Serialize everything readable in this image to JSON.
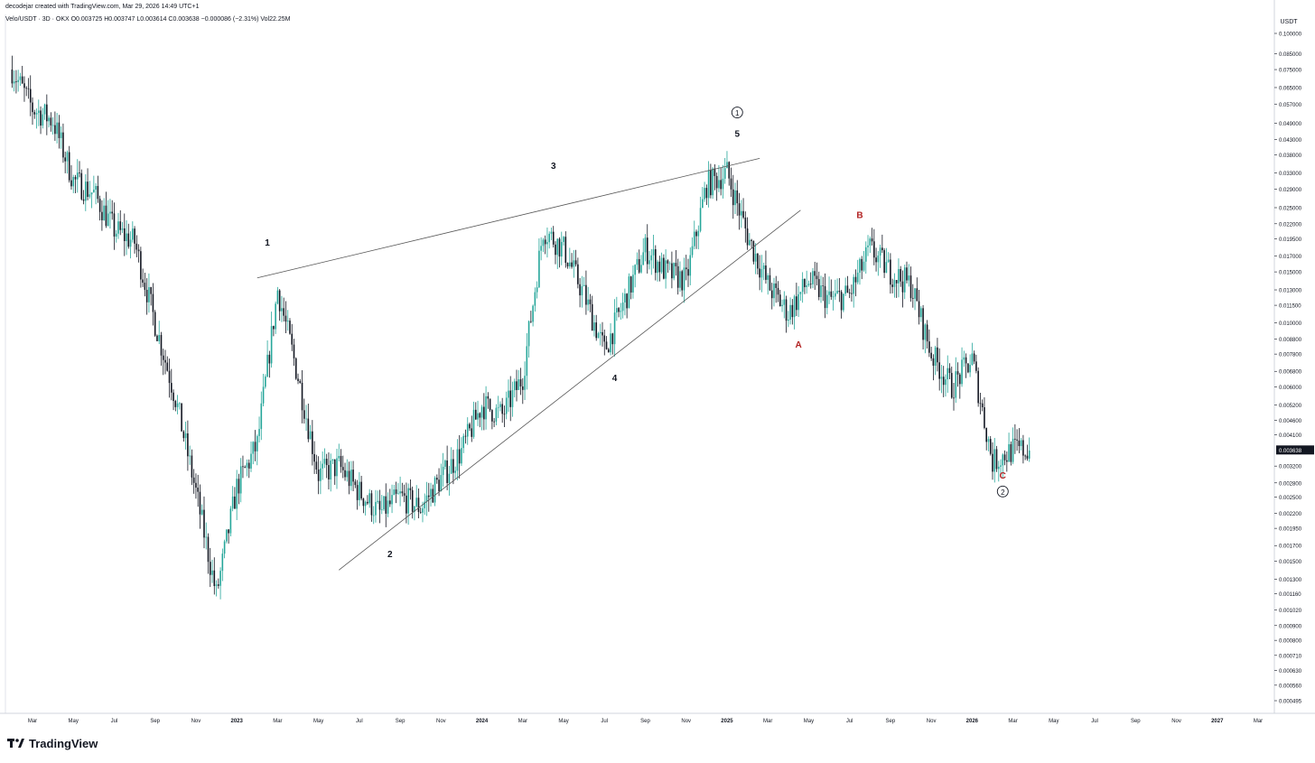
{
  "header": {
    "attribution": "decodejar created with TradingView.com, Mar 29, 2026 14:49 UTC+1",
    "symbol_line": "Velo/USDT · 3D · OKX  O0.003725  H0.003747  L0.003614  C0.003638  −0.000086 (−2.31%)  Vol22.25M"
  },
  "price_axis": {
    "currency": "USDT",
    "last_price_label": "0.003638"
  },
  "footer": {
    "brand": "TradingView"
  },
  "colors": {
    "up_candle": "#26a69a",
    "down_candle": "#131722",
    "wave_label_black": "#131722",
    "wave_label_red": "#b22222",
    "trendline": "#555555",
    "last_price_bg": "#131722"
  },
  "chart_data": {
    "type": "candlestick",
    "scale": "log",
    "ylim": [
      0.000495,
      0.1
    ],
    "y_ticks": [
      "0.100000",
      "0.085000",
      "0.075000",
      "0.065000",
      "0.057000",
      "0.049000",
      "0.043000",
      "0.038000",
      "0.033000",
      "0.029000",
      "0.025000",
      "0.022000",
      "0.019500",
      "0.017000",
      "0.015000",
      "0.013000",
      "0.011500",
      "0.010000",
      "0.008800",
      "0.007800",
      "0.006800",
      "0.006000",
      "0.005200",
      "0.004600",
      "0.004100",
      "0.003200",
      "0.002800",
      "0.002500",
      "0.002200",
      "0.001950",
      "0.001700",
      "0.001500",
      "0.001300",
      "0.001160",
      "0.001020",
      "0.000900",
      "0.000800",
      "0.000710",
      "0.000630",
      "0.000560",
      "0.000495"
    ],
    "x_ticks": [
      "Mar",
      "May",
      "Jul",
      "Sep",
      "Nov",
      "2023",
      "Mar",
      "May",
      "Jul",
      "Sep",
      "Nov",
      "2024",
      "Mar",
      "May",
      "Jul",
      "Sep",
      "Nov",
      "2025",
      "Mar",
      "May",
      "Jul",
      "Sep",
      "Nov",
      "2026",
      "Mar",
      "May",
      "Jul",
      "Sep",
      "Nov",
      "2027",
      "Mar"
    ],
    "wave_labels": [
      {
        "text": "1",
        "date": "2023-02",
        "price": 0.0185,
        "color": "black"
      },
      {
        "text": "2",
        "date": "2023-08",
        "price": 0.00155,
        "color": "black"
      },
      {
        "text": "3",
        "date": "2024-04",
        "price": 0.034,
        "color": "black"
      },
      {
        "text": "4",
        "date": "2024-07",
        "price": 0.0063,
        "color": "black"
      },
      {
        "text": "5",
        "date": "2025-01",
        "price": 0.044,
        "color": "black"
      },
      {
        "text": "1",
        "date": "2025-01",
        "price": 0.052,
        "color": "black",
        "circled": true
      },
      {
        "text": "A",
        "date": "2025-04",
        "price": 0.0082,
        "color": "red"
      },
      {
        "text": "B",
        "date": "2025-07",
        "price": 0.023,
        "color": "red"
      },
      {
        "text": "C",
        "date": "2026-02",
        "price": 0.0029,
        "color": "red"
      },
      {
        "text": "2",
        "date": "2026-02",
        "price": 0.00255,
        "color": "black",
        "circled": true
      }
    ],
    "close_series": [
      {
        "date": "2022-02",
        "close": 0.075
      },
      {
        "date": "2022-03",
        "close": 0.055
      },
      {
        "date": "2022-04",
        "close": 0.05
      },
      {
        "date": "2022-05",
        "close": 0.031
      },
      {
        "date": "2022-06",
        "close": 0.028
      },
      {
        "date": "2022-07",
        "close": 0.021
      },
      {
        "date": "2022-08",
        "close": 0.019
      },
      {
        "date": "2022-09",
        "close": 0.01
      },
      {
        "date": "2022-10",
        "close": 0.0055
      },
      {
        "date": "2022-11",
        "close": 0.0026
      },
      {
        "date": "2022-12",
        "close": 0.00115
      },
      {
        "date": "2023-01",
        "close": 0.0027
      },
      {
        "date": "2023-02",
        "close": 0.0038
      },
      {
        "date": "2023-03",
        "close": 0.013
      },
      {
        "date": "2023-04",
        "close": 0.0065
      },
      {
        "date": "2023-05",
        "close": 0.003
      },
      {
        "date": "2023-06",
        "close": 0.0032
      },
      {
        "date": "2023-07",
        "close": 0.0026
      },
      {
        "date": "2023-08",
        "close": 0.0022
      },
      {
        "date": "2023-09",
        "close": 0.0025
      },
      {
        "date": "2023-10",
        "close": 0.0023
      },
      {
        "date": "2023-11",
        "close": 0.0029
      },
      {
        "date": "2023-12",
        "close": 0.0036
      },
      {
        "date": "2024-01",
        "close": 0.0052
      },
      {
        "date": "2024-02",
        "close": 0.0048
      },
      {
        "date": "2024-03",
        "close": 0.0065
      },
      {
        "date": "2024-04",
        "close": 0.021
      },
      {
        "date": "2024-05",
        "close": 0.018
      },
      {
        "date": "2024-06",
        "close": 0.0125
      },
      {
        "date": "2024-07",
        "close": 0.008
      },
      {
        "date": "2024-08",
        "close": 0.012
      },
      {
        "date": "2024-09",
        "close": 0.018
      },
      {
        "date": "2024-10",
        "close": 0.015
      },
      {
        "date": "2024-11",
        "close": 0.014
      },
      {
        "date": "2024-12",
        "close": 0.03
      },
      {
        "date": "2025-01",
        "close": 0.033
      },
      {
        "date": "2025-02",
        "close": 0.02
      },
      {
        "date": "2025-03",
        "close": 0.0135
      },
      {
        "date": "2025-04",
        "close": 0.0108
      },
      {
        "date": "2025-05",
        "close": 0.014
      },
      {
        "date": "2025-06",
        "close": 0.012
      },
      {
        "date": "2025-07",
        "close": 0.0125
      },
      {
        "date": "2025-08",
        "close": 0.018
      },
      {
        "date": "2025-09",
        "close": 0.015
      },
      {
        "date": "2025-10",
        "close": 0.0135
      },
      {
        "date": "2025-11",
        "close": 0.0078
      },
      {
        "date": "2025-12",
        "close": 0.006
      },
      {
        "date": "2026-01",
        "close": 0.0075
      },
      {
        "date": "2026-02",
        "close": 0.0033
      },
      {
        "date": "2026-03",
        "close": 0.003638
      }
    ],
    "trendlines": [
      {
        "from": {
          "date": "2023-02",
          "price": 0.0143
        },
        "to": {
          "date": "2025-02",
          "price": 0.037
        }
      },
      {
        "from": {
          "date": "2023-06",
          "price": 0.0014
        },
        "to": {
          "date": "2025-04",
          "price": 0.0245
        }
      }
    ]
  }
}
